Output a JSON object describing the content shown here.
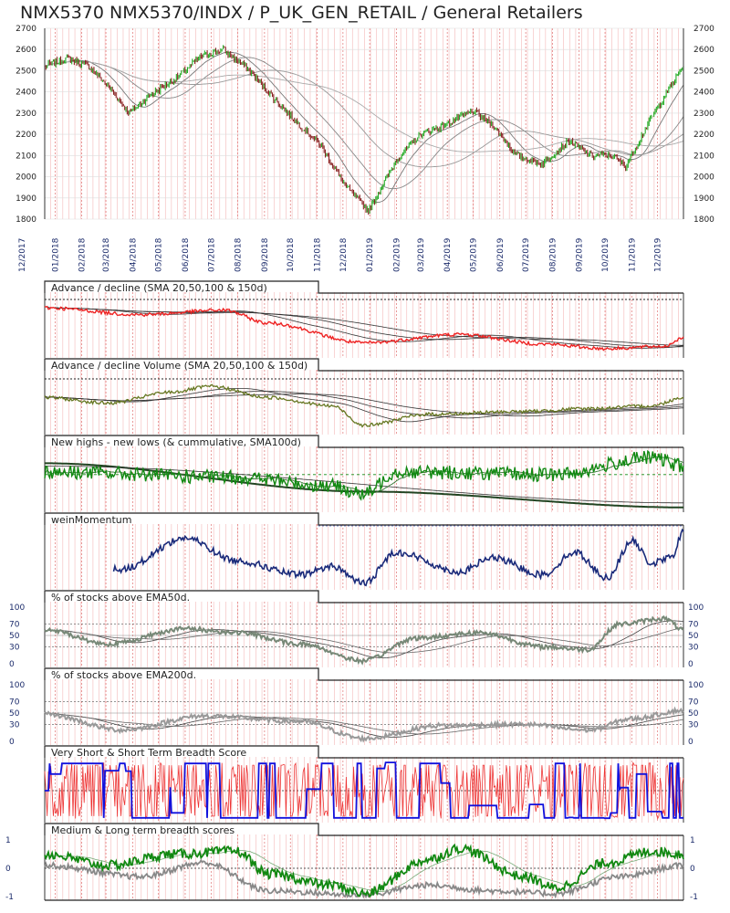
{
  "title": "NMX5370 NMX5370/INDX / P_UK_GEN_RETAIL / General Retailers",
  "colors": {
    "price_up": "#22aa22",
    "price_down": "#882222",
    "ad": "#ee2222",
    "adv": "#667722",
    "nhnl": "#118811",
    "momentum": "#1a2a7a",
    "ema50": "#778877",
    "ema200": "#999999",
    "breadth_red": "#ee3333",
    "breadth_blue": "#1111dd",
    "ml_green": "#118811",
    "ml_gray": "#888888",
    "axis_text": "#1a2a6a",
    "grid_red": "#f4b8b8",
    "sma": "#555555"
  },
  "chart_data": [
    {
      "type": "line",
      "name": "price",
      "ylim": [
        1800,
        2700
      ],
      "yticks": [
        1800,
        1900,
        2000,
        2100,
        2200,
        2300,
        2400,
        2500,
        2600,
        2700
      ],
      "x_ticks": [
        "12/2017",
        "01/2018",
        "02/2018",
        "03/2018",
        "04/2018",
        "05/2018",
        "06/2018",
        "07/2018",
        "08/2018",
        "09/2018",
        "10/2018",
        "11/2018",
        "12/2018",
        "01/2019",
        "02/2019",
        "03/2019",
        "04/2019",
        "05/2019",
        "06/2019",
        "07/2019",
        "08/2019",
        "09/2019",
        "10/2019",
        "11/2019",
        "12/2019"
      ],
      "x": [
        "2017-12-20",
        "2018-01-15",
        "2018-02-10",
        "2018-03-05",
        "2018-03-28",
        "2018-04-20",
        "2018-05-20",
        "2018-06-20",
        "2018-07-15",
        "2018-08-10",
        "2018-09-10",
        "2018-10-10",
        "2018-11-05",
        "2018-12-05",
        "2018-12-31",
        "2019-02-01",
        "2019-03-01",
        "2019-04-01",
        "2019-05-01",
        "2019-05-25",
        "2019-06-20",
        "2019-07-20",
        "2019-08-20",
        "2019-09-15",
        "2019-10-10",
        "2019-10-25",
        "2019-11-20",
        "2019-12-15",
        "2019-12-31"
      ],
      "values": [
        2520,
        2560,
        2520,
        2420,
        2300,
        2380,
        2460,
        2570,
        2600,
        2520,
        2380,
        2250,
        2150,
        1950,
        1840,
        2080,
        2200,
        2250,
        2310,
        2240,
        2100,
        2060,
        2170,
        2100,
        2100,
        2050,
        2250,
        2420,
        2520
      ]
    },
    {
      "type": "line",
      "panel": "Advance / decline (SMA 20,50,100 & 150d)"
    },
    {
      "type": "line",
      "panel": "Advance / decline Volume (SMA 20,50,100 & 150d)"
    },
    {
      "type": "line",
      "panel": "New highs - new lows (& cummulative, SMA100d)"
    },
    {
      "type": "line",
      "panel": "weinMomentum"
    },
    {
      "type": "line",
      "panel": "% of stocks above EMA50d.",
      "yticks": [
        0,
        30,
        50,
        70,
        100
      ]
    },
    {
      "type": "line",
      "panel": "% of stocks above EMA200d.",
      "yticks": [
        0,
        30,
        50,
        70,
        100
      ]
    },
    {
      "type": "line",
      "panel": "Very Short & Short Term Breadth Score"
    },
    {
      "type": "line",
      "panel": "Medium & Long term breadth scores",
      "yticks": [
        -1,
        0,
        1
      ]
    }
  ]
}
